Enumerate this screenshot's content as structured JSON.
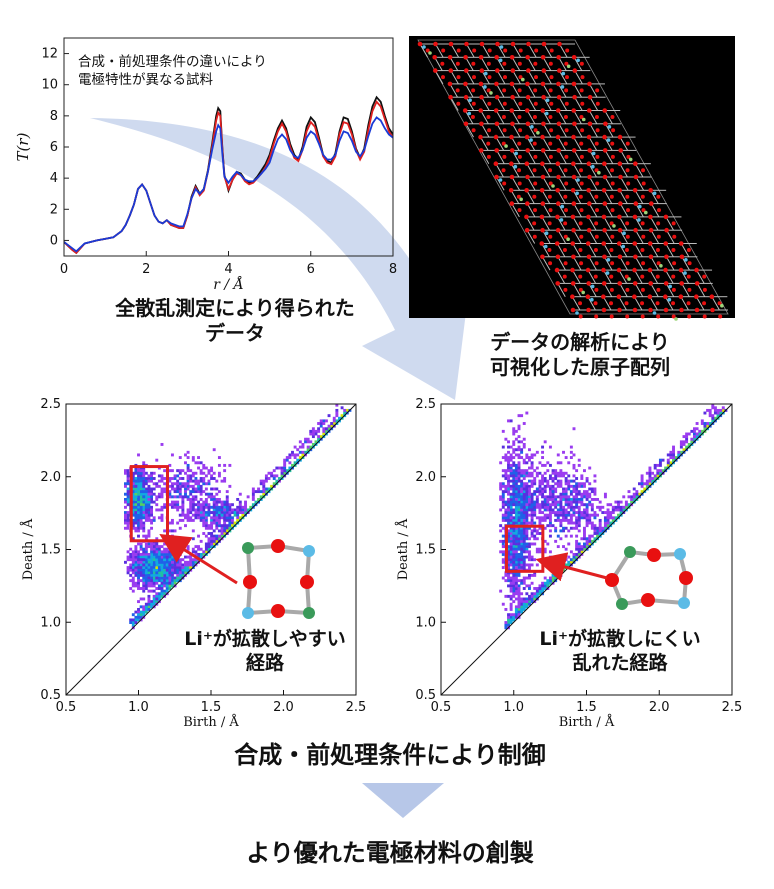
{
  "captions": {
    "tr_caption": "全散乱測定により得られた\nデータ",
    "structure_caption": "データの解析により\n可視化した原子配列",
    "left_note": "Li⁺が拡散しやすい\n経路",
    "right_note": "Li⁺が拡散しにくい\n乱れた経路",
    "control": "合成・前処理条件により制御",
    "result": "より優れた電極材料の創製"
  },
  "colors": {
    "arrow": "#c7d3ec",
    "red_box": "#e02020",
    "atom_red": "#e81010",
    "atom_blue": "#5bbbe6",
    "atom_green": "#3a9a5a",
    "bond": "#a9a9a9"
  },
  "chart_data": [
    {
      "type": "line",
      "annotation": "合成・前処理条件の違いにより\n電極特性が異なる試料",
      "xlabel": "r / Å",
      "ylabel": "T(r)",
      "xlim": [
        0,
        8
      ],
      "ylim": [
        -1,
        13
      ],
      "xticks": [
        "0",
        "2",
        "4",
        "6",
        "8"
      ],
      "yticks": [
        "0",
        "2",
        "4",
        "6",
        "8",
        "10",
        "12"
      ],
      "series": [
        {
          "color": "#111111",
          "x": [
            0,
            0.2,
            0.3,
            0.5,
            0.8,
            1.0,
            1.2,
            1.4,
            1.5,
            1.6,
            1.7,
            1.8,
            1.9,
            2.0,
            2.1,
            2.2,
            2.3,
            2.4,
            2.5,
            2.6,
            2.7,
            2.8,
            2.9,
            3.0,
            3.1,
            3.2,
            3.3,
            3.4,
            3.5,
            3.6,
            3.7,
            3.75,
            3.8,
            3.85,
            3.9,
            4.0,
            4.1,
            4.2,
            4.3,
            4.4,
            4.5,
            4.6,
            4.7,
            4.8,
            4.9,
            5.0,
            5.1,
            5.2,
            5.3,
            5.4,
            5.5,
            5.6,
            5.7,
            5.8,
            5.9,
            6.0,
            6.1,
            6.2,
            6.3,
            6.4,
            6.5,
            6.6,
            6.7,
            6.8,
            6.9,
            7.0,
            7.1,
            7.2,
            7.3,
            7.4,
            7.5,
            7.6,
            7.7,
            7.8,
            7.9,
            8.0
          ],
          "y": [
            -0.1,
            -0.6,
            -0.8,
            -0.2,
            0.0,
            0.1,
            0.2,
            0.6,
            1.0,
            1.6,
            2.3,
            3.3,
            3.6,
            3.2,
            2.4,
            1.6,
            1.2,
            1.1,
            1.3,
            1.0,
            0.9,
            0.8,
            0.8,
            1.6,
            2.8,
            3.5,
            3.0,
            3.3,
            4.5,
            6.2,
            8.0,
            8.5,
            8.3,
            6.0,
            4.2,
            3.2,
            3.9,
            4.4,
            4.3,
            3.9,
            3.7,
            3.8,
            4.1,
            4.5,
            4.9,
            5.5,
            6.4,
            7.2,
            7.7,
            7.2,
            6.2,
            5.5,
            5.2,
            6.0,
            7.3,
            7.9,
            7.6,
            6.6,
            5.5,
            5.1,
            5.0,
            5.6,
            7.0,
            7.9,
            7.8,
            7.0,
            5.9,
            5.3,
            5.9,
            7.4,
            8.6,
            9.2,
            8.9,
            8.0,
            7.2,
            6.8
          ]
        },
        {
          "color": "#e02020",
          "x": [
            0,
            0.2,
            0.3,
            0.5,
            0.8,
            1.0,
            1.2,
            1.4,
            1.5,
            1.6,
            1.7,
            1.8,
            1.9,
            2.0,
            2.1,
            2.2,
            2.3,
            2.4,
            2.5,
            2.6,
            2.7,
            2.8,
            2.9,
            3.0,
            3.1,
            3.2,
            3.3,
            3.4,
            3.5,
            3.6,
            3.7,
            3.75,
            3.8,
            3.85,
            3.9,
            4.0,
            4.1,
            4.2,
            4.3,
            4.4,
            4.5,
            4.6,
            4.7,
            4.8,
            4.9,
            5.0,
            5.1,
            5.2,
            5.3,
            5.4,
            5.5,
            5.6,
            5.7,
            5.8,
            5.9,
            6.0,
            6.1,
            6.2,
            6.3,
            6.4,
            6.5,
            6.6,
            6.7,
            6.8,
            6.9,
            7.0,
            7.1,
            7.2,
            7.3,
            7.4,
            7.5,
            7.6,
            7.7,
            7.8,
            7.9,
            8.0
          ],
          "y": [
            -0.1,
            -0.6,
            -0.8,
            -0.2,
            0.0,
            0.1,
            0.2,
            0.6,
            1.0,
            1.6,
            2.3,
            3.3,
            3.6,
            3.2,
            2.4,
            1.6,
            1.2,
            1.1,
            1.3,
            1.0,
            0.9,
            0.8,
            0.8,
            1.6,
            2.7,
            3.4,
            2.9,
            3.2,
            4.4,
            6.0,
            7.7,
            8.2,
            8.0,
            5.9,
            4.1,
            3.3,
            3.9,
            4.3,
            4.2,
            3.8,
            3.6,
            3.7,
            4.0,
            4.3,
            4.7,
            5.3,
            6.2,
            7.0,
            7.5,
            7.0,
            6.0,
            5.3,
            5.1,
            5.8,
            7.0,
            7.6,
            7.3,
            6.4,
            5.4,
            5.0,
            4.9,
            5.4,
            6.8,
            7.6,
            7.5,
            6.8,
            5.8,
            5.2,
            5.7,
            7.1,
            8.3,
            8.9,
            8.6,
            7.8,
            7.0,
            6.6
          ]
        },
        {
          "color": "#1a3bd6",
          "x": [
            0,
            0.2,
            0.3,
            0.5,
            0.8,
            1.0,
            1.2,
            1.4,
            1.5,
            1.6,
            1.7,
            1.8,
            1.9,
            2.0,
            2.1,
            2.2,
            2.3,
            2.4,
            2.5,
            2.6,
            2.7,
            2.8,
            2.9,
            3.0,
            3.1,
            3.2,
            3.3,
            3.4,
            3.5,
            3.6,
            3.7,
            3.75,
            3.8,
            3.85,
            3.9,
            4.0,
            4.1,
            4.2,
            4.3,
            4.4,
            4.5,
            4.6,
            4.7,
            4.8,
            4.9,
            5.0,
            5.1,
            5.2,
            5.3,
            5.4,
            5.5,
            5.6,
            5.7,
            5.8,
            5.9,
            6.0,
            6.1,
            6.2,
            6.3,
            6.4,
            6.5,
            6.6,
            6.7,
            6.8,
            6.9,
            7.0,
            7.1,
            7.2,
            7.3,
            7.4,
            7.5,
            7.6,
            7.7,
            7.8,
            7.9,
            8.0
          ],
          "y": [
            -0.1,
            -0.5,
            -0.7,
            -0.2,
            0.0,
            0.1,
            0.2,
            0.6,
            1.0,
            1.6,
            2.3,
            3.3,
            3.6,
            3.2,
            2.4,
            1.6,
            1.2,
            1.1,
            1.3,
            1.1,
            1.0,
            0.9,
            0.9,
            1.7,
            2.7,
            3.3,
            3.0,
            3.3,
            4.4,
            5.8,
            7.0,
            7.4,
            7.2,
            5.6,
            4.1,
            3.7,
            4.1,
            4.4,
            4.2,
            3.9,
            3.8,
            3.8,
            4.0,
            4.3,
            4.6,
            5.0,
            5.8,
            6.5,
            6.8,
            6.5,
            5.8,
            5.4,
            5.3,
            5.8,
            6.6,
            7.0,
            6.8,
            6.2,
            5.5,
            5.2,
            5.2,
            5.5,
            6.4,
            7.0,
            6.9,
            6.4,
            5.7,
            5.4,
            5.8,
            6.7,
            7.5,
            7.9,
            7.7,
            7.2,
            6.8,
            6.6
          ]
        }
      ]
    },
    {
      "type": "heatmap",
      "xlabel": "Birth / Å",
      "ylabel": "Death / Å",
      "xlim": [
        0.5,
        2.5
      ],
      "ylim": [
        0.5,
        2.5
      ],
      "ticks": [
        "0.5",
        "1.0",
        "1.5",
        "2.0",
        "2.5"
      ],
      "highlight_box": {
        "x": [
          0.95,
          1.2
        ],
        "y": [
          1.56,
          2.07
        ]
      },
      "clusters": [
        {
          "x": 1.0,
          "y": 1.85,
          "sx": 0.05,
          "sy": 0.1,
          "n": 260
        },
        {
          "x": 1.12,
          "y": 1.38,
          "sx": 0.1,
          "sy": 0.08,
          "n": 320
        },
        {
          "x": 1.35,
          "y": 1.9,
          "sx": 0.12,
          "sy": 0.12,
          "n": 130
        },
        {
          "x": 1.55,
          "y": 1.75,
          "sx": 0.08,
          "sy": 0.06,
          "n": 90
        }
      ]
    },
    {
      "type": "heatmap",
      "xlabel": "Birth / Å",
      "ylabel": "Death / Å",
      "xlim": [
        0.5,
        2.5
      ],
      "ylim": [
        0.5,
        2.5
      ],
      "ticks": [
        "0.5",
        "1.0",
        "1.5",
        "2.0",
        "2.5"
      ],
      "highlight_box": {
        "x": [
          0.95,
          1.2
        ],
        "y": [
          1.35,
          1.66
        ]
      },
      "clusters": [
        {
          "x": 1.02,
          "y": 1.65,
          "sx": 0.05,
          "sy": 0.28,
          "n": 380
        },
        {
          "x": 1.2,
          "y": 1.85,
          "sx": 0.15,
          "sy": 0.15,
          "n": 180
        },
        {
          "x": 1.45,
          "y": 1.8,
          "sx": 0.1,
          "sy": 0.1,
          "n": 90
        }
      ]
    }
  ]
}
